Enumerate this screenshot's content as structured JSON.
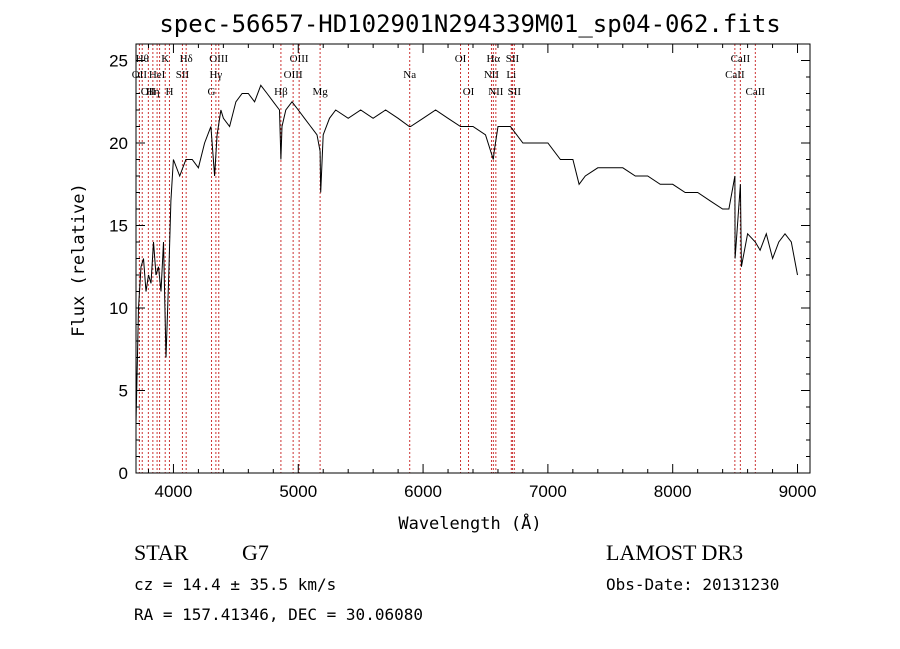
{
  "chart_data": {
    "type": "line",
    "title": "spec-56657-HD102901N294339M01_sp04-062.fits",
    "xlabel": "Wavelength (Å)",
    "ylabel": "Flux (relative)",
    "xlim": [
      3700,
      9100
    ],
    "ylim": [
      0,
      26
    ],
    "x_ticks": [
      4000,
      5000,
      6000,
      7000,
      8000,
      9000
    ],
    "y_ticks": [
      0,
      5,
      10,
      15,
      20,
      25
    ],
    "grid": false,
    "line_color": "#000000",
    "marker_color": "#cc3333",
    "series": [
      {
        "x": [
          3700,
          3720,
          3740,
          3760,
          3780,
          3800,
          3820,
          3840,
          3860,
          3880,
          3900,
          3920,
          3940,
          3960,
          3980,
          4000,
          4050,
          4100,
          4150,
          4200,
          4250,
          4300,
          4330,
          4350,
          4380,
          4400,
          4450,
          4500,
          4550,
          4600,
          4650,
          4700,
          4750,
          4800,
          4850,
          4861,
          4870,
          4900,
          4950,
          5000,
          5050,
          5100,
          5150,
          5175,
          5180,
          5200,
          5250,
          5300,
          5400,
          5500,
          5600,
          5700,
          5800,
          5890,
          5900,
          6000,
          6100,
          6200,
          6300,
          6400,
          6500,
          6563,
          6570,
          6600,
          6700,
          6800,
          6900,
          7000,
          7100,
          7200,
          7250,
          7300,
          7400,
          7500,
          7600,
          7700,
          7800,
          7900,
          8000,
          8100,
          8200,
          8300,
          8400,
          8450,
          8498,
          8500,
          8542,
          8550,
          8600,
          8662,
          8700,
          8750,
          8800,
          8850,
          8900,
          8950,
          9000
        ],
        "y": [
          3.0,
          10.0,
          12.5,
          13.0,
          11.0,
          12.0,
          11.5,
          14.0,
          12.0,
          12.5,
          11.0,
          14.0,
          7.0,
          11.5,
          16.5,
          19.0,
          18.0,
          19.0,
          19.0,
          18.5,
          20.0,
          21.0,
          18.0,
          20.5,
          22.0,
          21.5,
          21.0,
          22.5,
          23.0,
          23.0,
          22.5,
          23.5,
          23.0,
          22.5,
          22.0,
          19.0,
          21.0,
          22.0,
          22.5,
          22.0,
          21.5,
          21.0,
          20.5,
          19.5,
          17.0,
          20.5,
          21.5,
          22.0,
          21.5,
          22.0,
          21.5,
          22.0,
          21.5,
          21.0,
          21.0,
          21.5,
          22.0,
          21.5,
          21.0,
          21.0,
          20.5,
          19.0,
          19.5,
          21.0,
          21.0,
          20.0,
          20.0,
          20.0,
          19.0,
          19.0,
          17.5,
          18.0,
          18.5,
          18.5,
          18.5,
          18.0,
          18.0,
          17.5,
          17.5,
          17.0,
          17.0,
          16.5,
          16.0,
          16.0,
          18.0,
          13.0,
          17.5,
          12.5,
          14.5,
          14.0,
          13.5,
          14.5,
          13.0,
          14.0,
          14.5,
          14.0,
          12.0
        ]
      }
    ],
    "line_markers": [
      {
        "x": 3727,
        "label": "OII",
        "row": 2
      },
      {
        "x": 3750,
        "label": "Hθ",
        "row": 1
      },
      {
        "x": 3799,
        "label": "OII",
        "row": 3
      },
      {
        "x": 3835,
        "label": "Hη",
        "row": 3
      },
      {
        "x": 3869,
        "label": "HeI",
        "row": 2
      },
      {
        "x": 3889,
        "label": "",
        "row": 0
      },
      {
        "x": 3934,
        "label": "K",
        "row": 1
      },
      {
        "x": 3968,
        "label": "H",
        "row": 3
      },
      {
        "x": 4072,
        "label": "SII",
        "row": 2
      },
      {
        "x": 4102,
        "label": "Hδ",
        "row": 1
      },
      {
        "x": 4305,
        "label": "G",
        "row": 3
      },
      {
        "x": 4340,
        "label": "Hγ",
        "row": 2
      },
      {
        "x": 4363,
        "label": "OIII",
        "row": 1
      },
      {
        "x": 4861,
        "label": "Hβ",
        "row": 3
      },
      {
        "x": 4959,
        "label": "OIII",
        "row": 2
      },
      {
        "x": 5007,
        "label": "OIII",
        "row": 1
      },
      {
        "x": 5175,
        "label": "Mg",
        "row": 3
      },
      {
        "x": 5893,
        "label": "Na",
        "row": 2
      },
      {
        "x": 6300,
        "label": "OI",
        "row": 1
      },
      {
        "x": 6364,
        "label": "OI",
        "row": 3
      },
      {
        "x": 6548,
        "label": "NII",
        "row": 2
      },
      {
        "x": 6563,
        "label": "Hα",
        "row": 1
      },
      {
        "x": 6583,
        "label": "NII",
        "row": 3
      },
      {
        "x": 6707,
        "label": "Li",
        "row": 2
      },
      {
        "x": 6716,
        "label": "SII",
        "row": 1
      },
      {
        "x": 6731,
        "label": "SII",
        "row": 3
      },
      {
        "x": 8498,
        "label": "CaII",
        "row": 2
      },
      {
        "x": 8542,
        "label": "CaII",
        "row": 1
      },
      {
        "x": 8662,
        "label": "CaII",
        "row": 3
      }
    ]
  },
  "info": {
    "class": "STAR",
    "subclass": "G7",
    "survey": "LAMOST DR3",
    "cz": "cz = 14.4 ± 35.5 km/s",
    "obs_date": "Obs-Date: 20131230",
    "coords": "RA = 157.41346, DEC =  30.06080"
  }
}
